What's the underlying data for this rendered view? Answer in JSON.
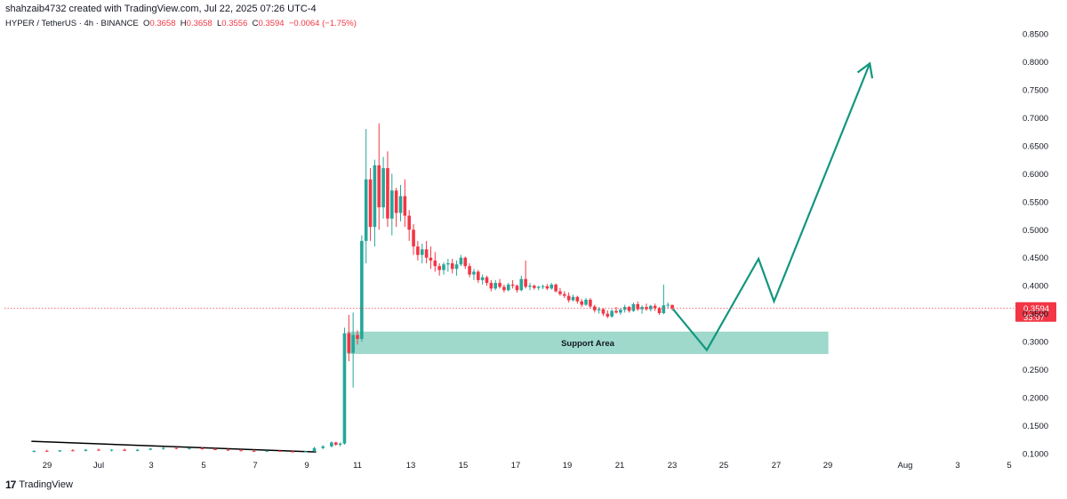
{
  "header": {
    "credit": "shahzaib4732 created with TradingView.com, Jul 22, 2025 07:26 UTC-4",
    "symbol": "HYPER / TetherUS · 4h · BINANCE",
    "ohlc": {
      "O": "0.3658",
      "H": "0.3658",
      "L": "0.3556",
      "C": "0.3594",
      "change": "−0.0064 (−1.75%)"
    }
  },
  "footer": {
    "brand": "TradingView"
  },
  "colors": {
    "up": "#26a69a",
    "down": "#f23645",
    "projection": "#14967f",
    "support_fill": "#9ed9cb",
    "trendline": "#000000",
    "price_label_bg": "#f23645"
  },
  "chart_data": {
    "type": "candlestick",
    "timeframe": "4h",
    "x_ticks": [
      "29",
      "Jul",
      "3",
      "5",
      "7",
      "9",
      "11",
      "13",
      "15",
      "17",
      "19",
      "21",
      "23",
      "25",
      "27",
      "29",
      "Aug",
      "3",
      "5"
    ],
    "y_ticks": [
      "0.8500",
      "0.8000",
      "0.7500",
      "0.7000",
      "0.6500",
      "0.6000",
      "0.5500",
      "0.5000",
      "0.4500",
      "0.4000",
      "0.3500",
      "0.3000",
      "0.2500",
      "0.2000",
      "0.1500",
      "0.1000"
    ],
    "ylim": [
      0.095,
      0.86
    ],
    "last_price": {
      "value": 0.3594,
      "label": "0.3594",
      "countdown": "33:07"
    },
    "support_area": {
      "label": "Support Area",
      "top": 0.318,
      "bottom": 0.278,
      "from_day": 9.6,
      "to_day": 28.2
    },
    "trendline": {
      "start": {
        "day": -2.6,
        "price": 0.122
      },
      "end": {
        "day": 8.4,
        "price": 0.103
      }
    },
    "projection": {
      "points": [
        {
          "day": 22.2,
          "price": 0.358
        },
        {
          "day": 23.5,
          "price": 0.285
        },
        {
          "day": 25.5,
          "price": 0.448
        },
        {
          "day": 26.1,
          "price": 0.372
        },
        {
          "day": 29.8,
          "price": 0.797
        }
      ]
    },
    "candles": [
      {
        "day": -2.5,
        "o": 0.104,
        "h": 0.106,
        "l": 0.102,
        "c": 0.105
      },
      {
        "day": -2.0,
        "o": 0.105,
        "h": 0.107,
        "l": 0.103,
        "c": 0.104
      },
      {
        "day": -1.5,
        "o": 0.104,
        "h": 0.106,
        "l": 0.103,
        "c": 0.106
      },
      {
        "day": -1.0,
        "o": 0.106,
        "h": 0.108,
        "l": 0.104,
        "c": 0.105
      },
      {
        "day": -0.5,
        "o": 0.105,
        "h": 0.108,
        "l": 0.104,
        "c": 0.107
      },
      {
        "day": 0.0,
        "o": 0.107,
        "h": 0.109,
        "l": 0.105,
        "c": 0.106
      },
      {
        "day": 0.5,
        "o": 0.106,
        "h": 0.108,
        "l": 0.104,
        "c": 0.107
      },
      {
        "day": 1.0,
        "o": 0.107,
        "h": 0.109,
        "l": 0.105,
        "c": 0.105
      },
      {
        "day": 1.5,
        "o": 0.105,
        "h": 0.108,
        "l": 0.104,
        "c": 0.107
      },
      {
        "day": 2.0,
        "o": 0.107,
        "h": 0.11,
        "l": 0.106,
        "c": 0.109
      },
      {
        "day": 2.5,
        "o": 0.109,
        "h": 0.112,
        "l": 0.107,
        "c": 0.11
      },
      {
        "day": 3.0,
        "o": 0.11,
        "h": 0.112,
        "l": 0.108,
        "c": 0.109
      },
      {
        "day": 3.5,
        "o": 0.109,
        "h": 0.111,
        "l": 0.107,
        "c": 0.11
      },
      {
        "day": 4.0,
        "o": 0.11,
        "h": 0.112,
        "l": 0.107,
        "c": 0.108
      },
      {
        "day": 4.5,
        "o": 0.108,
        "h": 0.11,
        "l": 0.106,
        "c": 0.107
      },
      {
        "day": 5.0,
        "o": 0.107,
        "h": 0.109,
        "l": 0.105,
        "c": 0.106
      },
      {
        "day": 5.5,
        "o": 0.106,
        "h": 0.108,
        "l": 0.104,
        "c": 0.105
      },
      {
        "day": 6.0,
        "o": 0.105,
        "h": 0.107,
        "l": 0.103,
        "c": 0.104
      },
      {
        "day": 6.5,
        "o": 0.104,
        "h": 0.106,
        "l": 0.103,
        "c": 0.105
      },
      {
        "day": 7.0,
        "o": 0.105,
        "h": 0.107,
        "l": 0.103,
        "c": 0.104
      },
      {
        "day": 7.5,
        "o": 0.104,
        "h": 0.106,
        "l": 0.102,
        "c": 0.103
      },
      {
        "day": 8.0,
        "o": 0.103,
        "h": 0.105,
        "l": 0.102,
        "c": 0.104
      },
      {
        "day": 8.333,
        "o": 0.104,
        "h": 0.112,
        "l": 0.103,
        "c": 0.11
      },
      {
        "day": 8.667,
        "o": 0.11,
        "h": 0.115,
        "l": 0.108,
        "c": 0.113
      },
      {
        "day": 9.0,
        "o": 0.113,
        "h": 0.122,
        "l": 0.111,
        "c": 0.12
      },
      {
        "day": 9.167,
        "o": 0.12,
        "h": 0.121,
        "l": 0.114,
        "c": 0.116
      },
      {
        "day": 9.333,
        "o": 0.116,
        "h": 0.12,
        "l": 0.113,
        "c": 0.118
      },
      {
        "day": 9.5,
        "o": 0.118,
        "h": 0.325,
        "l": 0.116,
        "c": 0.315
      },
      {
        "day": 9.667,
        "o": 0.315,
        "h": 0.348,
        "l": 0.265,
        "c": 0.28
      },
      {
        "day": 9.833,
        "o": 0.28,
        "h": 0.352,
        "l": 0.218,
        "c": 0.312
      },
      {
        "day": 10.0,
        "o": 0.312,
        "h": 0.32,
        "l": 0.295,
        "c": 0.305
      },
      {
        "day": 10.167,
        "o": 0.305,
        "h": 0.49,
        "l": 0.3,
        "c": 0.48
      },
      {
        "day": 10.333,
        "o": 0.48,
        "h": 0.68,
        "l": 0.44,
        "c": 0.59
      },
      {
        "day": 10.5,
        "o": 0.59,
        "h": 0.61,
        "l": 0.48,
        "c": 0.505
      },
      {
        "day": 10.667,
        "o": 0.505,
        "h": 0.625,
        "l": 0.47,
        "c": 0.615
      },
      {
        "day": 10.833,
        "o": 0.615,
        "h": 0.69,
        "l": 0.5,
        "c": 0.54
      },
      {
        "day": 11.0,
        "o": 0.54,
        "h": 0.63,
        "l": 0.52,
        "c": 0.61
      },
      {
        "day": 11.167,
        "o": 0.61,
        "h": 0.64,
        "l": 0.505,
        "c": 0.52
      },
      {
        "day": 11.333,
        "o": 0.52,
        "h": 0.6,
        "l": 0.49,
        "c": 0.57
      },
      {
        "day": 11.5,
        "o": 0.57,
        "h": 0.575,
        "l": 0.505,
        "c": 0.53
      },
      {
        "day": 11.667,
        "o": 0.53,
        "h": 0.58,
        "l": 0.515,
        "c": 0.56
      },
      {
        "day": 11.833,
        "o": 0.56,
        "h": 0.59,
        "l": 0.505,
        "c": 0.525
      },
      {
        "day": 12.0,
        "o": 0.525,
        "h": 0.535,
        "l": 0.48,
        "c": 0.5
      },
      {
        "day": 12.167,
        "o": 0.5,
        "h": 0.51,
        "l": 0.455,
        "c": 0.47
      },
      {
        "day": 12.333,
        "o": 0.47,
        "h": 0.48,
        "l": 0.445,
        "c": 0.455
      },
      {
        "day": 12.5,
        "o": 0.455,
        "h": 0.475,
        "l": 0.44,
        "c": 0.465
      },
      {
        "day": 12.667,
        "o": 0.465,
        "h": 0.48,
        "l": 0.44,
        "c": 0.45
      },
      {
        "day": 12.833,
        "o": 0.45,
        "h": 0.47,
        "l": 0.43,
        "c": 0.445
      },
      {
        "day": 13.0,
        "o": 0.445,
        "h": 0.46,
        "l": 0.425,
        "c": 0.435
      },
      {
        "day": 13.167,
        "o": 0.435,
        "h": 0.44,
        "l": 0.418,
        "c": 0.428
      },
      {
        "day": 13.333,
        "o": 0.428,
        "h": 0.442,
        "l": 0.42,
        "c": 0.438
      },
      {
        "day": 13.5,
        "o": 0.438,
        "h": 0.448,
        "l": 0.425,
        "c": 0.44
      },
      {
        "day": 13.667,
        "o": 0.44,
        "h": 0.448,
        "l": 0.422,
        "c": 0.43
      },
      {
        "day": 13.833,
        "o": 0.43,
        "h": 0.445,
        "l": 0.418,
        "c": 0.438
      },
      {
        "day": 14.0,
        "o": 0.438,
        "h": 0.455,
        "l": 0.435,
        "c": 0.45
      },
      {
        "day": 14.167,
        "o": 0.45,
        "h": 0.452,
        "l": 0.43,
        "c": 0.435
      },
      {
        "day": 14.333,
        "o": 0.435,
        "h": 0.44,
        "l": 0.415,
        "c": 0.42
      },
      {
        "day": 14.5,
        "o": 0.42,
        "h": 0.43,
        "l": 0.41,
        "c": 0.425
      },
      {
        "day": 14.667,
        "o": 0.425,
        "h": 0.428,
        "l": 0.405,
        "c": 0.41
      },
      {
        "day": 14.833,
        "o": 0.41,
        "h": 0.42,
        "l": 0.402,
        "c": 0.415
      },
      {
        "day": 15.0,
        "o": 0.415,
        "h": 0.418,
        "l": 0.4,
        "c": 0.405
      },
      {
        "day": 15.167,
        "o": 0.405,
        "h": 0.41,
        "l": 0.39,
        "c": 0.395
      },
      {
        "day": 15.333,
        "o": 0.395,
        "h": 0.41,
        "l": 0.392,
        "c": 0.405
      },
      {
        "day": 15.5,
        "o": 0.405,
        "h": 0.412,
        "l": 0.395,
        "c": 0.398
      },
      {
        "day": 15.667,
        "o": 0.398,
        "h": 0.402,
        "l": 0.388,
        "c": 0.392
      },
      {
        "day": 15.833,
        "o": 0.392,
        "h": 0.405,
        "l": 0.39,
        "c": 0.402
      },
      {
        "day": 16.0,
        "o": 0.402,
        "h": 0.41,
        "l": 0.395,
        "c": 0.4
      },
      {
        "day": 16.167,
        "o": 0.4,
        "h": 0.402,
        "l": 0.388,
        "c": 0.392
      },
      {
        "day": 16.333,
        "o": 0.392,
        "h": 0.418,
        "l": 0.39,
        "c": 0.412
      },
      {
        "day": 16.5,
        "o": 0.412,
        "h": 0.445,
        "l": 0.395,
        "c": 0.398
      },
      {
        "day": 16.667,
        "o": 0.398,
        "h": 0.405,
        "l": 0.392,
        "c": 0.4
      },
      {
        "day": 16.833,
        "o": 0.4,
        "h": 0.402,
        "l": 0.393,
        "c": 0.396
      },
      {
        "day": 17.0,
        "o": 0.396,
        "h": 0.4,
        "l": 0.392,
        "c": 0.398
      },
      {
        "day": 17.167,
        "o": 0.398,
        "h": 0.402,
        "l": 0.394,
        "c": 0.399
      },
      {
        "day": 17.333,
        "o": 0.399,
        "h": 0.403,
        "l": 0.392,
        "c": 0.395
      },
      {
        "day": 17.5,
        "o": 0.395,
        "h": 0.405,
        "l": 0.393,
        "c": 0.402
      },
      {
        "day": 17.667,
        "o": 0.402,
        "h": 0.404,
        "l": 0.388,
        "c": 0.39
      },
      {
        "day": 17.833,
        "o": 0.39,
        "h": 0.396,
        "l": 0.382,
        "c": 0.385
      },
      {
        "day": 18.0,
        "o": 0.385,
        "h": 0.39,
        "l": 0.378,
        "c": 0.382
      },
      {
        "day": 18.167,
        "o": 0.382,
        "h": 0.388,
        "l": 0.37,
        "c": 0.374
      },
      {
        "day": 18.333,
        "o": 0.374,
        "h": 0.384,
        "l": 0.372,
        "c": 0.38
      },
      {
        "day": 18.5,
        "o": 0.38,
        "h": 0.382,
        "l": 0.368,
        "c": 0.372
      },
      {
        "day": 18.667,
        "o": 0.372,
        "h": 0.376,
        "l": 0.362,
        "c": 0.366
      },
      {
        "day": 18.833,
        "o": 0.366,
        "h": 0.378,
        "l": 0.364,
        "c": 0.375
      },
      {
        "day": 19.0,
        "o": 0.375,
        "h": 0.378,
        "l": 0.36,
        "c": 0.363
      },
      {
        "day": 19.167,
        "o": 0.363,
        "h": 0.366,
        "l": 0.352,
        "c": 0.356
      },
      {
        "day": 19.333,
        "o": 0.356,
        "h": 0.362,
        "l": 0.35,
        "c": 0.358
      },
      {
        "day": 19.5,
        "o": 0.358,
        "h": 0.36,
        "l": 0.346,
        "c": 0.35
      },
      {
        "day": 19.667,
        "o": 0.35,
        "h": 0.356,
        "l": 0.342,
        "c": 0.345
      },
      {
        "day": 19.833,
        "o": 0.345,
        "h": 0.358,
        "l": 0.343,
        "c": 0.355
      },
      {
        "day": 20.0,
        "o": 0.355,
        "h": 0.362,
        "l": 0.35,
        "c": 0.352
      },
      {
        "day": 20.167,
        "o": 0.352,
        "h": 0.36,
        "l": 0.348,
        "c": 0.357
      },
      {
        "day": 20.333,
        "o": 0.357,
        "h": 0.366,
        "l": 0.352,
        "c": 0.362
      },
      {
        "day": 20.5,
        "o": 0.362,
        "h": 0.364,
        "l": 0.352,
        "c": 0.355
      },
      {
        "day": 20.667,
        "o": 0.355,
        "h": 0.37,
        "l": 0.353,
        "c": 0.367
      },
      {
        "day": 20.833,
        "o": 0.367,
        "h": 0.372,
        "l": 0.355,
        "c": 0.358
      },
      {
        "day": 21.0,
        "o": 0.358,
        "h": 0.365,
        "l": 0.35,
        "c": 0.362
      },
      {
        "day": 21.167,
        "o": 0.362,
        "h": 0.368,
        "l": 0.355,
        "c": 0.358
      },
      {
        "day": 21.333,
        "o": 0.358,
        "h": 0.366,
        "l": 0.354,
        "c": 0.364
      },
      {
        "day": 21.5,
        "o": 0.364,
        "h": 0.368,
        "l": 0.355,
        "c": 0.36
      },
      {
        "day": 21.667,
        "o": 0.36,
        "h": 0.362,
        "l": 0.348,
        "c": 0.351
      },
      {
        "day": 21.833,
        "o": 0.351,
        "h": 0.402,
        "l": 0.349,
        "c": 0.365
      },
      {
        "day": 22.0,
        "o": 0.365,
        "h": 0.37,
        "l": 0.36,
        "c": 0.366
      },
      {
        "day": 22.167,
        "o": 0.3658,
        "h": 0.3658,
        "l": 0.3556,
        "c": 0.3594
      }
    ]
  }
}
